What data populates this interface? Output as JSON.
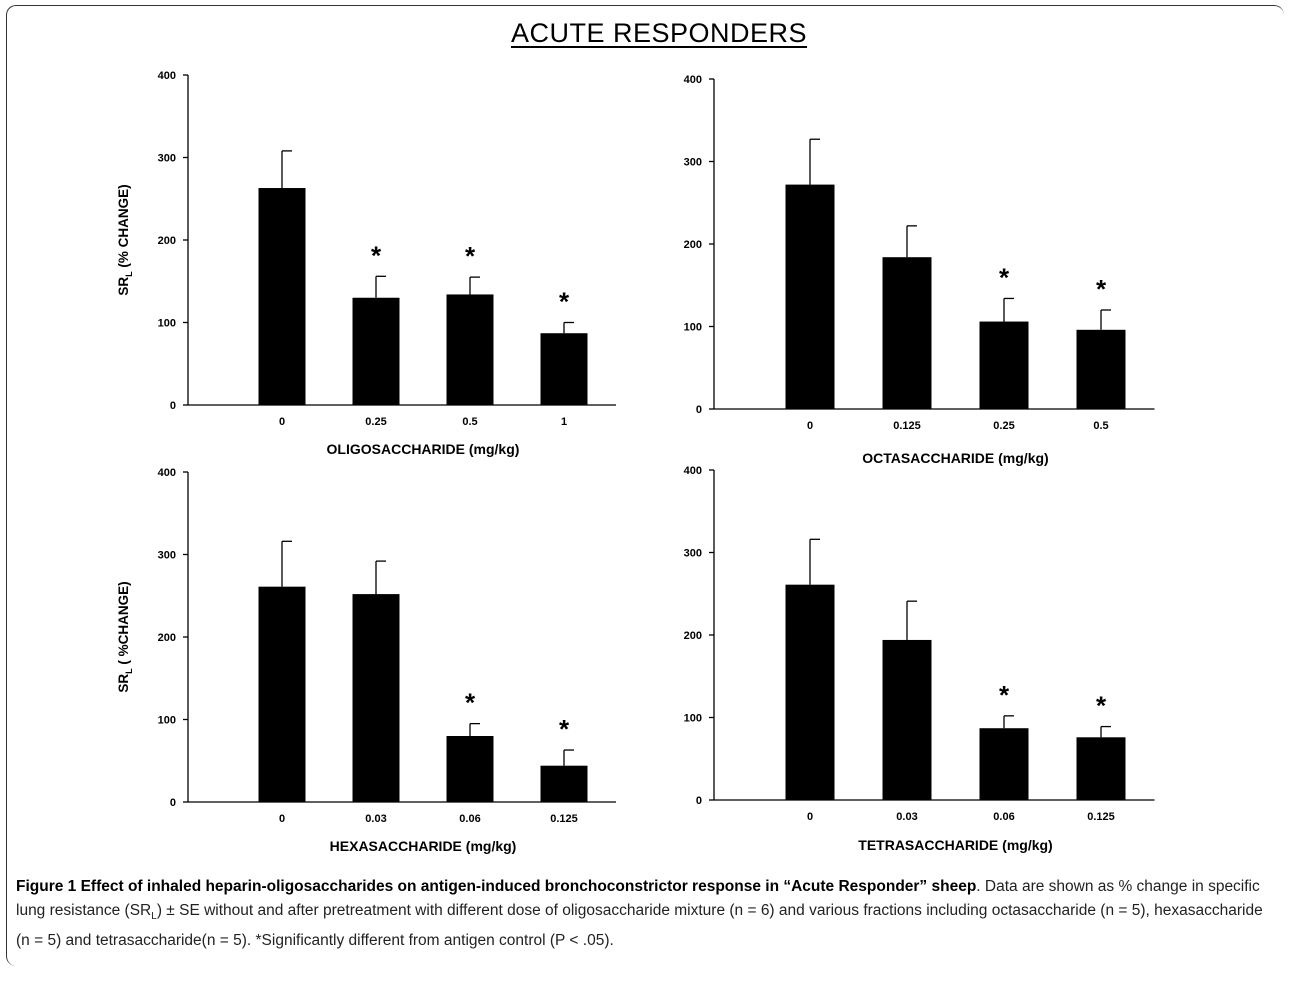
{
  "figure": {
    "title": "ACUTE RESPONDERS",
    "caption_bold": "Figure 1 Effect of inhaled heparin-oligosaccharides on antigen-induced bronchoconstrictor response in “Acute Responder” sheep",
    "caption_text_1": ". Data are shown as % change in specific lung resistance (SR",
    "caption_sub": "L",
    "caption_text_2": ") ± SE without and after pretreatment with different dose of oligosaccharide mixture (n = 6) and various fractions including octasaccharide (n = 5), hexasaccharide (n = 5) and tetrasaccharide(n = 5). *Significantly different from antigen control (P < .05)."
  },
  "chart_data": [
    {
      "type": "bar",
      "categories": [
        "0",
        "0.25",
        "0.5",
        "1"
      ],
      "values": [
        263,
        130,
        134,
        87
      ],
      "errors": [
        45,
        26,
        21,
        13
      ],
      "significant": [
        false,
        true,
        true,
        true
      ],
      "marker": "*",
      "xlabel": "OLIGOSACCHARIDE (mg/kg)",
      "ylabel_main": "SR",
      "ylabel_sub": "L",
      "ylabel_rest": "(% CHANGE)",
      "ylim": [
        0,
        400
      ],
      "yticks": [
        0,
        100,
        200,
        300,
        400
      ],
      "color": "#000000",
      "grid": false
    },
    {
      "type": "bar",
      "categories": [
        "0",
        "0.125",
        "0.25",
        "0.5"
      ],
      "values": [
        272,
        184,
        106,
        96
      ],
      "errors": [
        55,
        38,
        28,
        24
      ],
      "significant": [
        false,
        false,
        true,
        true
      ],
      "marker": "*",
      "xlabel": "OCTASACCHARIDE (mg/kg)",
      "ylabel_main": "",
      "ylabel_sub": "",
      "ylabel_rest": "",
      "ylim": [
        0,
        400
      ],
      "yticks": [
        0,
        100,
        200,
        300,
        400
      ],
      "color": "#000000",
      "grid": false
    },
    {
      "type": "bar",
      "categories": [
        "0",
        "0.03",
        "0.06",
        "0.125"
      ],
      "values": [
        261,
        252,
        80,
        44
      ],
      "errors": [
        55,
        40,
        15,
        19
      ],
      "significant": [
        false,
        false,
        true,
        true
      ],
      "marker": "*",
      "xlabel": "HEXASACCHARIDE (mg/kg)",
      "ylabel_main": "SR",
      "ylabel_sub": "L",
      "ylabel_rest": "( %CHANGE)",
      "ylim": [
        0,
        400
      ],
      "yticks": [
        0,
        100,
        200,
        300,
        400
      ],
      "color": "#000000",
      "grid": false
    },
    {
      "type": "bar",
      "categories": [
        "0",
        "0.03",
        "0.06",
        "0.125"
      ],
      "values": [
        261,
        194,
        87,
        76
      ],
      "errors": [
        55,
        47,
        15,
        13
      ],
      "significant": [
        false,
        false,
        true,
        true
      ],
      "marker": "*",
      "xlabel": "TETRASACCHARIDE (mg/kg)",
      "ylabel_main": "",
      "ylabel_sub": "",
      "ylabel_rest": "",
      "ylim": [
        0,
        400
      ],
      "yticks": [
        0,
        100,
        200,
        300,
        400
      ],
      "color": "#000000",
      "grid": false
    }
  ]
}
